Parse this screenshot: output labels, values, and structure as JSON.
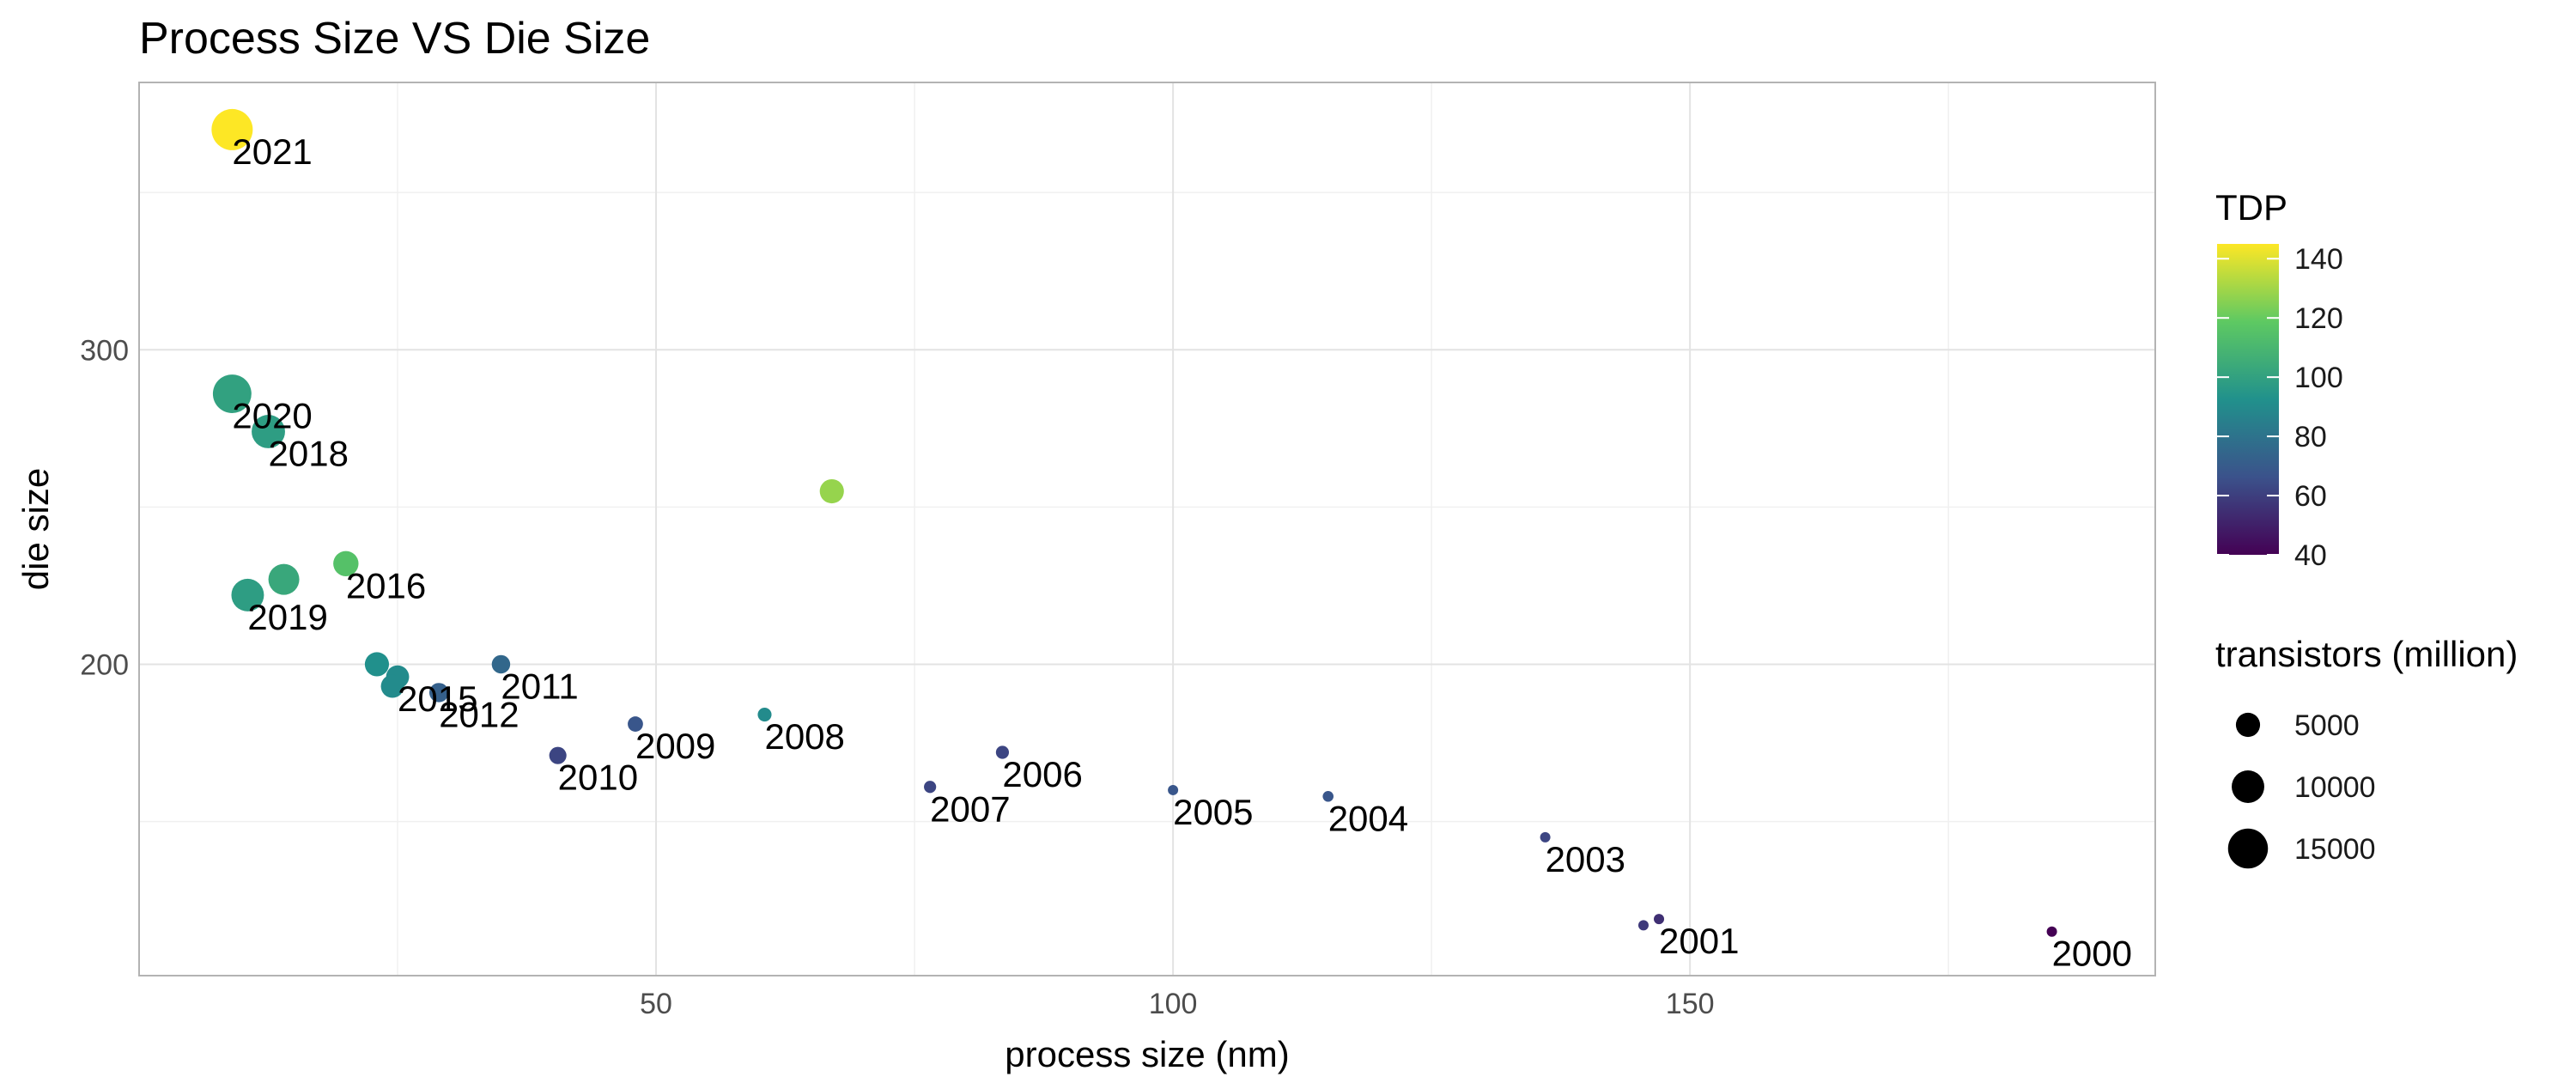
{
  "chart_data": {
    "type": "scatter",
    "title": "Process Size VS Die Size",
    "xlabel": "process size (nm)",
    "ylabel": "die size",
    "xlim": [
      0,
      195
    ],
    "ylim": [
      101,
      385
    ],
    "x_ticks": [
      50,
      100,
      150
    ],
    "y_ticks": [
      200,
      300
    ],
    "grid": true,
    "color_legend": {
      "title": "TDP",
      "range": [
        40,
        145
      ],
      "ticks": [
        40,
        60,
        80,
        100,
        120,
        140
      ],
      "palette": [
        "#440154",
        "#3b528b",
        "#21918c",
        "#5ec962",
        "#fde725"
      ]
    },
    "size_legend": {
      "title": "transistors (million)",
      "values": [
        5000,
        10000,
        15000
      ]
    },
    "points": [
      {
        "label": "2021",
        "x": 9,
        "y": 370,
        "tdp": 145,
        "transistors": 16000
      },
      {
        "label": "2020",
        "x": 9,
        "y": 286,
        "tdp": 100,
        "transistors": 14000
      },
      {
        "label": "2018",
        "x": 12.5,
        "y": 274,
        "tdp": 98,
        "transistors": 10500
      },
      {
        "label": "",
        "x": 67,
        "y": 255,
        "tdp": 128,
        "transistors": 5500
      },
      {
        "label": "2016",
        "x": 20,
        "y": 232,
        "tdp": 115,
        "transistors": 6000
      },
      {
        "label": "",
        "x": 14,
        "y": 227,
        "tdp": 103,
        "transistors": 9000
      },
      {
        "label": "2019",
        "x": 10.5,
        "y": 222,
        "tdp": 98,
        "transistors": 10000
      },
      {
        "label": "",
        "x": 23,
        "y": 200,
        "tdp": 92,
        "transistors": 5500
      },
      {
        "label": "2015",
        "x": 25,
        "y": 196,
        "tdp": 90,
        "transistors": 5000
      },
      {
        "label": "",
        "x": 24.5,
        "y": 193,
        "tdp": 90,
        "transistors": 5000
      },
      {
        "label": "2012",
        "x": 29,
        "y": 191,
        "tdp": 72,
        "transistors": 3500
      },
      {
        "label": "2011",
        "x": 35,
        "y": 200,
        "tdp": 75,
        "transistors": 3200
      },
      {
        "label": "2009",
        "x": 48,
        "y": 181,
        "tdp": 68,
        "transistors": 2200
      },
      {
        "label": "2008",
        "x": 60.5,
        "y": 184,
        "tdp": 90,
        "transistors": 1800
      },
      {
        "label": "2010",
        "x": 40.5,
        "y": 171,
        "tdp": 62,
        "transistors": 2800
      },
      {
        "label": "2006",
        "x": 83.5,
        "y": 172,
        "tdp": 62,
        "transistors": 1600
      },
      {
        "label": "2007",
        "x": 76.5,
        "y": 161,
        "tdp": 62,
        "transistors": 1400
      },
      {
        "label": "2005",
        "x": 100,
        "y": 160,
        "tdp": 68,
        "transistors": 1000
      },
      {
        "label": "2004",
        "x": 115,
        "y": 158,
        "tdp": 68,
        "transistors": 1100
      },
      {
        "label": "2003",
        "x": 136,
        "y": 145,
        "tdp": 62,
        "transistors": 800
      },
      {
        "label": "2001",
        "x": 147,
        "y": 119,
        "tdp": 55,
        "transistors": 1000
      },
      {
        "label": "",
        "x": 145.5,
        "y": 117,
        "tdp": 58,
        "transistors": 800
      },
      {
        "label": "2000",
        "x": 185,
        "y": 115,
        "tdp": 40,
        "transistors": 500
      }
    ]
  }
}
